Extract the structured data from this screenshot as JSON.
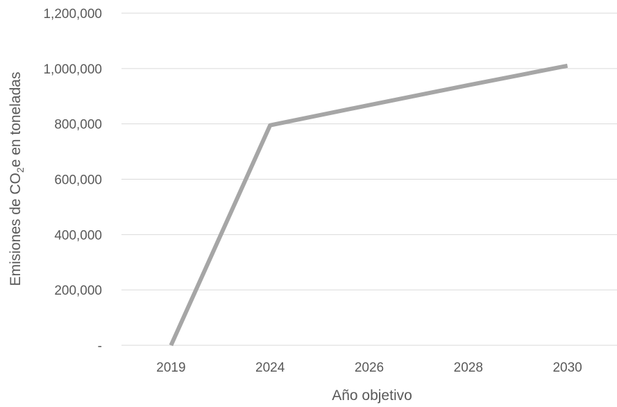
{
  "chart_data": {
    "type": "line",
    "categories": [
      "2019",
      "2024",
      "2026",
      "2028",
      "2030"
    ],
    "series": [
      {
        "values": [
          0,
          795000,
          868000,
          940000,
          1010000
        ]
      }
    ],
    "xlabel": "Año objetivo",
    "ylabel": {
      "prefix": "Emisiones de CO",
      "subscript": "2",
      "suffix": "e en toneladas"
    },
    "ylim": [
      0,
      1200000
    ],
    "yticks": [
      0,
      200000,
      400000,
      600000,
      800000,
      1000000,
      1200000
    ],
    "ytick_labels": [
      "-",
      "200,000",
      "400,000",
      "600,000",
      "800,000",
      "1,000,000",
      "1,200,000"
    ],
    "grid": true,
    "colors": {
      "line": "#a6a6a6",
      "grid": "#d9d9d9",
      "text": "#595959"
    }
  }
}
